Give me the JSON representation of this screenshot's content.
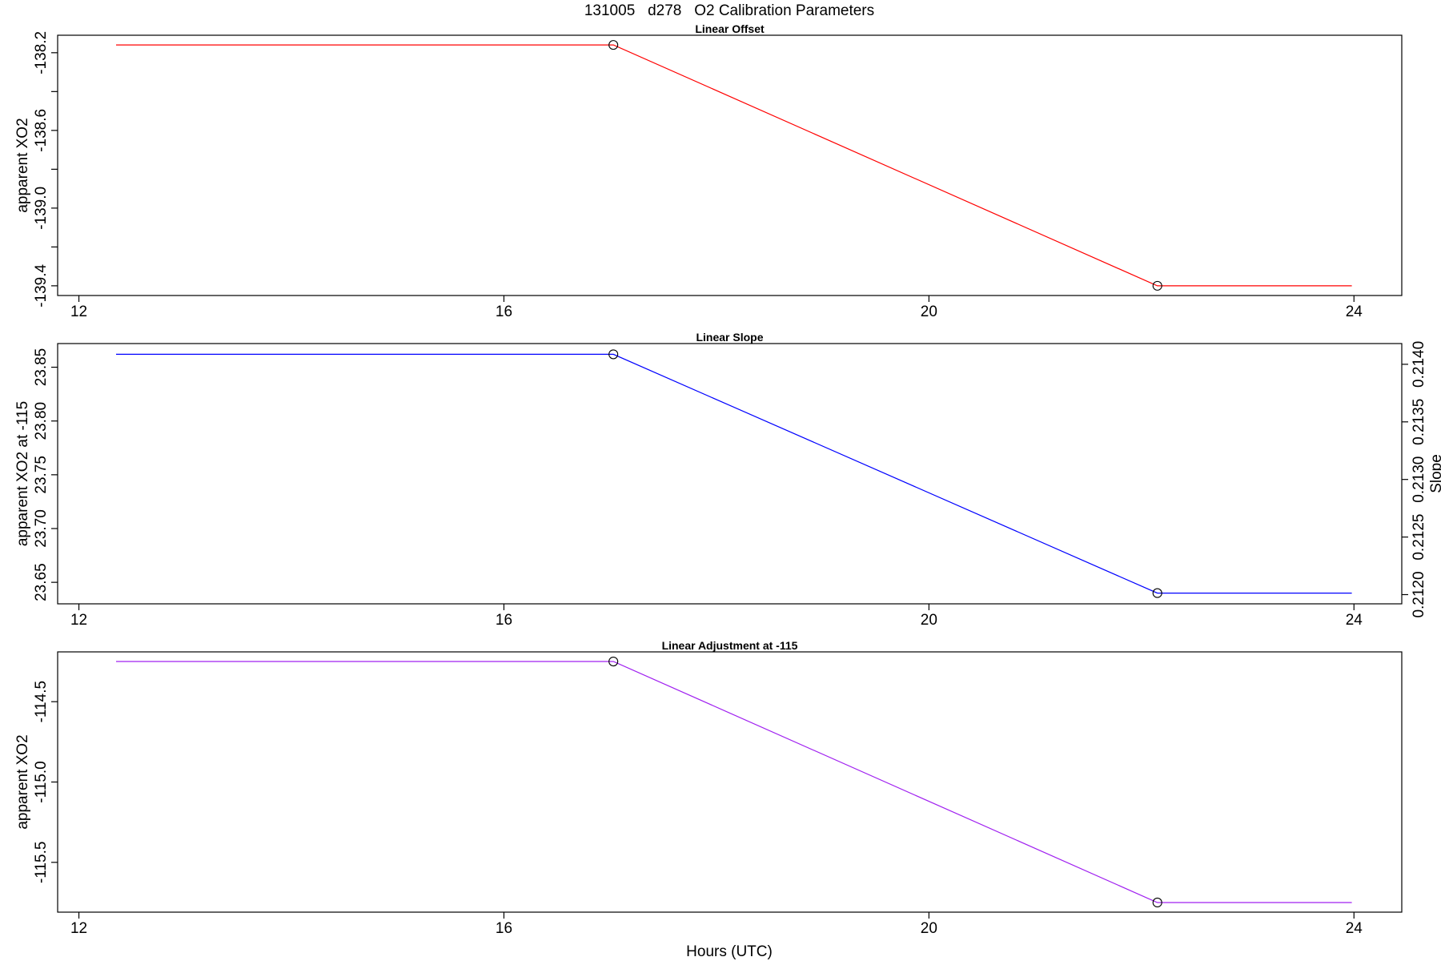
{
  "figure_title": "131005   d278   O2 Calibration Parameters",
  "xlabel": "Hours (UTC)",
  "chart_data": [
    {
      "type": "line",
      "title": "Linear Offset",
      "xlabel": "",
      "ylabel": "apparent XO2",
      "xlim": [
        11.8,
        24.45
      ],
      "xticks": [
        "12",
        "16",
        "20",
        "24"
      ],
      "ylim": [
        -139.45,
        -138.11
      ],
      "yticks": [
        "-138.2",
        "",
        "-138.6",
        "",
        "-139.0",
        "",
        "-139.4"
      ],
      "ytick_values": [
        -138.2,
        -138.4,
        -138.6,
        -138.8,
        -139.0,
        -139.2,
        -139.4
      ],
      "color": "#ff0000",
      "series": [
        {
          "x": [
            12.35,
            17.03,
            22.15,
            23.98
          ],
          "y": [
            -138.16,
            -138.16,
            -139.4,
            -139.4
          ]
        }
      ],
      "markers": {
        "x": [
          17.03,
          22.15
        ],
        "y": [
          -138.16,
          -139.4
        ]
      }
    },
    {
      "type": "line",
      "title": "Linear Slope",
      "xlabel": "",
      "ylabel": "apparent XO2 at -115",
      "ylabel_right": "Slope",
      "xlim": [
        11.8,
        24.45
      ],
      "xticks": [
        "12",
        "16",
        "20",
        "24"
      ],
      "ylim": [
        23.63,
        23.872
      ],
      "yticks": [
        "23.65",
        "23.70",
        "23.75",
        "23.80",
        "23.85"
      ],
      "ytick_values": [
        23.65,
        23.7,
        23.75,
        23.8,
        23.85
      ],
      "ylim_right": [
        0.21192,
        0.21418
      ],
      "yticks_right": [
        "0.2120",
        "0.2125",
        "0.2130",
        "0.2135",
        "0.2140"
      ],
      "ytick_values_right": [
        0.212,
        0.2125,
        0.213,
        0.2135,
        0.214
      ],
      "color": "#0000ff",
      "series": [
        {
          "x": [
            12.35,
            17.03,
            22.15,
            23.98
          ],
          "y": [
            23.862,
            23.862,
            23.64,
            23.64
          ]
        }
      ],
      "markers": {
        "x": [
          17.03,
          22.15
        ],
        "y": [
          23.862,
          23.64
        ]
      }
    },
    {
      "type": "line",
      "title": "Linear Adjustment at -115",
      "xlabel": "",
      "ylabel": "apparent XO2",
      "xlim": [
        11.8,
        24.45
      ],
      "xticks": [
        "12",
        "16",
        "20",
        "24"
      ],
      "ylim": [
        -115.81,
        -114.19
      ],
      "yticks": [
        "-114.5",
        "-115.0",
        "-115.5"
      ],
      "ytick_values": [
        -114.5,
        -115.0,
        -115.5
      ],
      "color": "#a020f0",
      "series": [
        {
          "x": [
            12.35,
            17.03,
            22.15,
            23.98
          ],
          "y": [
            -114.25,
            -114.25,
            -115.75,
            -115.75
          ]
        }
      ],
      "markers": {
        "x": [
          17.03,
          22.15
        ],
        "y": [
          -114.25,
          -115.75
        ]
      }
    }
  ]
}
